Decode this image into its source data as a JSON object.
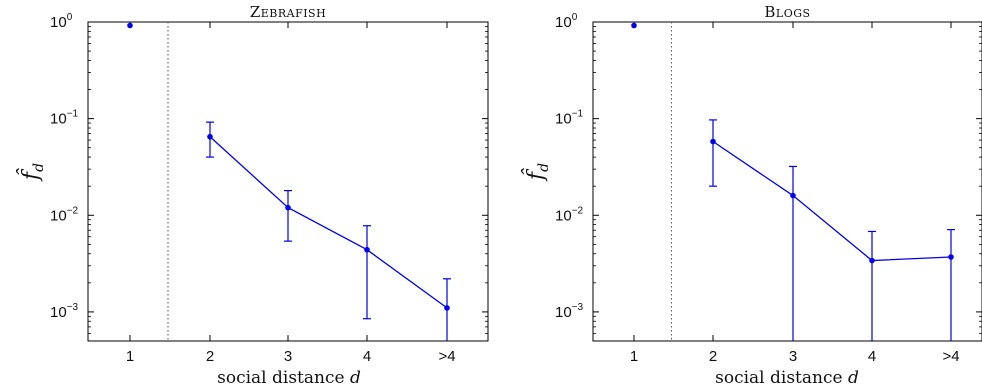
{
  "chart_data": [
    {
      "type": "scatter",
      "title": "Zebrafish",
      "xlabel": "social distance",
      "xlabel_var": "d",
      "ylabel": "f̂",
      "ylabel_sub": "d",
      "yscale": "log",
      "ylim": [
        0.0005,
        1
      ],
      "categories": [
        "1",
        "2",
        "3",
        "4",
        ">4"
      ],
      "yticks": [
        {
          "base": "10",
          "exp": "0"
        },
        {
          "base": "10",
          "exp": "−1"
        },
        {
          "base": "10",
          "exp": "−2"
        },
        {
          "base": "10",
          "exp": "−3"
        }
      ],
      "ytick_values": [
        1,
        0.1,
        0.01,
        0.001
      ],
      "separator_after_category": 1,
      "series": [
        {
          "color": "#0000ee",
          "points": [
            {
              "x": 1,
              "y": 0.92,
              "connected": false,
              "err_low": null,
              "err_high": null
            },
            {
              "x": 2,
              "y": 0.065,
              "connected": true,
              "err_low": 0.04,
              "err_high": 0.092
            },
            {
              "x": 3,
              "y": 0.012,
              "connected": true,
              "err_low": 0.0054,
              "err_high": 0.018
            },
            {
              "x": 4,
              "y": 0.0044,
              "connected": true,
              "err_low": 0.00085,
              "err_high": 0.0078
            },
            {
              "x": 5,
              "y": 0.0011,
              "connected": true,
              "err_low": 0.0005,
              "err_high": 0.0022
            }
          ]
        }
      ]
    },
    {
      "type": "scatter",
      "title": "Blogs",
      "xlabel": "social distance",
      "xlabel_var": "d",
      "ylabel": "f̂",
      "ylabel_sub": "d",
      "yscale": "log",
      "ylim": [
        0.0005,
        1
      ],
      "categories": [
        "1",
        "2",
        "3",
        "4",
        ">4"
      ],
      "yticks": [
        {
          "base": "10",
          "exp": "0"
        },
        {
          "base": "10",
          "exp": "−1"
        },
        {
          "base": "10",
          "exp": "−2"
        },
        {
          "base": "10",
          "exp": "−3"
        }
      ],
      "ytick_values": [
        1,
        0.1,
        0.01,
        0.001
      ],
      "separator_after_category": 1,
      "series": [
        {
          "color": "#0000ee",
          "points": [
            {
              "x": 1,
              "y": 0.92,
              "connected": false,
              "err_low": null,
              "err_high": null
            },
            {
              "x": 2,
              "y": 0.058,
              "connected": true,
              "err_low": 0.02,
              "err_high": 0.097
            },
            {
              "x": 3,
              "y": 0.016,
              "connected": true,
              "err_low": 0.0005,
              "err_high": 0.032
            },
            {
              "x": 4,
              "y": 0.0034,
              "connected": true,
              "err_low": 0.0005,
              "err_high": 0.0068
            },
            {
              "x": 5,
              "y": 0.0037,
              "connected": true,
              "err_low": 0.0005,
              "err_high": 0.0071
            }
          ]
        }
      ]
    }
  ]
}
